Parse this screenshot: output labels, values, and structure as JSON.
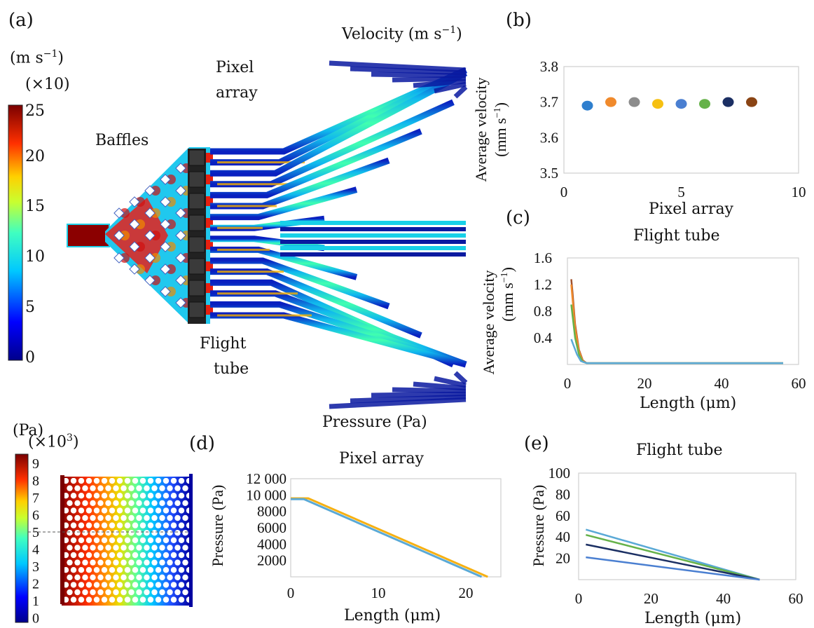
{
  "panel_a": {
    "label": "(a)",
    "title": "Velocity (m s",
    "title_sup": "−1",
    "title_close": ")",
    "colorbar": {
      "unit": "(m s",
      "unit_sup": "−1",
      "unit_close": ")",
      "scale": "(×10)",
      "ticks": [
        "25",
        "20",
        "15",
        "10",
        "5",
        "0"
      ]
    },
    "labels": {
      "baffles": "Baffles",
      "pixel_array_1": "Pixel",
      "pixel_array_2": "array",
      "flight_tube_1": "Flight",
      "flight_tube_2": "tube"
    },
    "colors": {
      "high": "#8b0000",
      "mid": "#f5d800",
      "low": "#00008b",
      "cyan": "#1fd0e8"
    }
  },
  "panel_b": {
    "label": "(b)",
    "xlabel": "Pixel array",
    "ylabel_1": "Average velocity",
    "ylabel_2": "(mm s",
    "ylabel_sup": "−1",
    "ylabel_close": ")"
  },
  "panel_c": {
    "label": "(c)",
    "title": "Flight tube",
    "xlabel": "Length (μm)",
    "ylabel_1": "Average velocity",
    "ylabel_2": "(mm s",
    "ylabel_sup": "−1",
    "ylabel_close": ")"
  },
  "pressure_map": {
    "title": "Pressure (Pa)",
    "unit": "(Pa)",
    "scale": "(×10",
    "scale_sup": "3",
    "scale_close": ")",
    "ticks": [
      "9",
      "8",
      "7",
      "6",
      "5",
      "4",
      "3",
      "2",
      "1",
      "0"
    ]
  },
  "panel_d": {
    "label": "(d)",
    "title": "Pixel array",
    "xlabel": "Length (μm)",
    "ylabel": "Pressure (Pa)"
  },
  "panel_e": {
    "label": "(e)",
    "title": "Flight tube",
    "xlabel": "Length (μm)",
    "ylabel": "Pressure (Pa)"
  },
  "chart_data": [
    {
      "id": "b",
      "type": "scatter",
      "x": [
        1,
        2,
        3,
        4,
        5,
        6,
        7,
        8
      ],
      "y": [
        3.69,
        3.7,
        3.7,
        3.695,
        3.695,
        3.695,
        3.7,
        3.7
      ],
      "colors": [
        "#2f7fce",
        "#f08a2c",
        "#8c8c8c",
        "#f6c012",
        "#4a7fd1",
        "#66b24a",
        "#1b2f63",
        "#8a4414"
      ],
      "xlim": [
        0,
        10
      ],
      "ylim": [
        3.5,
        3.8
      ],
      "xticks": [
        0,
        5,
        10
      ],
      "yticks": [
        3.5,
        3.6,
        3.7,
        3.8
      ],
      "xtick_labels": [
        "0",
        "5",
        "10"
      ],
      "ytick_labels": [
        "3.5",
        "3.6",
        "3.7",
        "3.8"
      ],
      "grid": false
    },
    {
      "id": "c",
      "type": "line",
      "xlim": [
        0,
        60
      ],
      "ylim": [
        0,
        1.6
      ],
      "xticks": [
        0,
        20,
        40,
        60
      ],
      "yticks": [
        0.4,
        0.8,
        1.2,
        1.6
      ],
      "xtick_labels": [
        "0",
        "20",
        "40",
        "60"
      ],
      "ytick_labels": [
        "0.4",
        "0.8",
        "1.2",
        "1.6"
      ],
      "series": [
        {
          "color": "#a0522d",
          "x": [
            1,
            1.3,
            2,
            3,
            4,
            5,
            56
          ],
          "y": [
            1.28,
            1.1,
            0.6,
            0.22,
            0.06,
            0.02,
            0.02
          ]
        },
        {
          "color": "#f08a2c",
          "x": [
            1,
            1.3,
            2,
            3,
            4,
            5,
            56
          ],
          "y": [
            1.2,
            1.0,
            0.55,
            0.2,
            0.05,
            0.02,
            0.02
          ]
        },
        {
          "color": "#66b24a",
          "x": [
            1,
            1.3,
            2,
            3,
            4,
            5,
            56
          ],
          "y": [
            0.9,
            0.75,
            0.4,
            0.15,
            0.04,
            0.02,
            0.02
          ]
        },
        {
          "color": "#5aa9d6",
          "x": [
            1,
            1.5,
            2.5,
            3.5,
            5,
            56
          ],
          "y": [
            0.38,
            0.3,
            0.15,
            0.05,
            0.02,
            0.02
          ]
        }
      ]
    },
    {
      "id": "d",
      "type": "line",
      "xlim": [
        0,
        24
      ],
      "ylim": [
        0,
        12000
      ],
      "xticks": [
        0,
        10,
        20
      ],
      "yticks": [
        2000,
        4000,
        6000,
        8000,
        10000,
        12000
      ],
      "xtick_labels": [
        "0",
        "10",
        "20"
      ],
      "ytick_labels": [
        "2000",
        "4000",
        "6000",
        "8000",
        "10 000",
        "12 000"
      ],
      "series": [
        {
          "color": "#f6b012",
          "x": [
            0,
            2,
            22.5
          ],
          "y": [
            9600,
            9600,
            0
          ]
        },
        {
          "color": "#5aa9d6",
          "x": [
            0,
            1.5,
            21.8
          ],
          "y": [
            9500,
            9500,
            0
          ]
        }
      ]
    },
    {
      "id": "e",
      "type": "line",
      "xlim": [
        0,
        60
      ],
      "ylim": [
        0,
        100
      ],
      "xticks": [
        0,
        20,
        40,
        60
      ],
      "yticks": [
        20,
        40,
        60,
        80,
        100
      ],
      "xtick_labels": [
        "0",
        "20",
        "40",
        "60"
      ],
      "ytick_labels": [
        "20",
        "40",
        "60",
        "80",
        "100"
      ],
      "series": [
        {
          "color": "#5aa9d6",
          "x": [
            2,
            50
          ],
          "y": [
            47,
            0
          ]
        },
        {
          "color": "#66b24a",
          "x": [
            2,
            50
          ],
          "y": [
            42,
            0
          ]
        },
        {
          "color": "#1b2f63",
          "x": [
            2,
            50
          ],
          "y": [
            33,
            0
          ]
        },
        {
          "color": "#4a7fd1",
          "x": [
            2,
            50
          ],
          "y": [
            21,
            0
          ]
        }
      ]
    }
  ]
}
